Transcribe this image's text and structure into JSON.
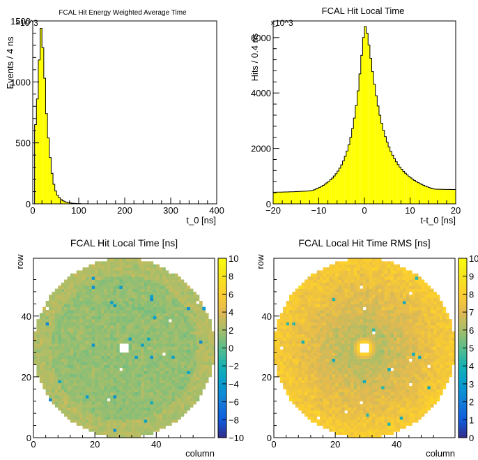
{
  "chart_data": [
    {
      "type": "histogram",
      "title": "FCAL Hit Energy Weighted Average Time",
      "xlabel": "t_0 [ns]",
      "ylabel": "Events / 4 ns",
      "y_multiplier": "×10^3",
      "xlim": [
        0,
        400
      ],
      "ylim": [
        0,
        1500
      ],
      "x_ticks": [
        0,
        100,
        200,
        300,
        400
      ],
      "y_ticks": [
        0,
        500,
        1000,
        1500
      ],
      "bin_width": 4,
      "fill_color": "#ffff00",
      "values": [
        0,
        650,
        860,
        1180,
        1440,
        1280,
        1030,
        740,
        540,
        380,
        250,
        160,
        105,
        70,
        50,
        35,
        25,
        18,
        13,
        9,
        7,
        5,
        4,
        3,
        2,
        2,
        1,
        1,
        1,
        1
      ]
    },
    {
      "type": "histogram",
      "title": "FCAL Hit Local Time",
      "xlabel": "t-t_0 [ns]",
      "ylabel": "Hits / 0.4 ns",
      "y_multiplier": "×10^3",
      "xlim": [
        -20,
        20
      ],
      "ylim": [
        0,
        6600
      ],
      "x_ticks": [
        -20,
        -10,
        0,
        10,
        20
      ],
      "y_ticks": [
        0,
        2000,
        4000,
        6000
      ],
      "bin_width": 0.4,
      "fill_color": "#ffff00",
      "peak": {
        "center": 0.2,
        "height": 6400,
        "width_left": 2.3,
        "width_right": 3.2,
        "tail_left": 0.22,
        "tail_right": 0.2,
        "baseline_left": 400,
        "baseline_right": 500
      }
    },
    {
      "type": "heatmap",
      "title": "FCAL Hit Local Time [ns]",
      "xlabel": "column",
      "ylabel": "row",
      "xlim": [
        0,
        59
      ],
      "ylim": [
        0,
        59
      ],
      "x_ticks": [
        0,
        20,
        40
      ],
      "y_ticks": [
        0,
        20,
        40
      ],
      "z_range": [
        -10,
        10
      ],
      "z_ticks": [
        -10,
        -8,
        -6,
        -4,
        -2,
        0,
        2,
        4,
        6,
        8,
        10
      ],
      "pattern": "flat",
      "center": [
        29,
        29
      ],
      "radius": 29.5,
      "beam_hole_half_width": 1
    },
    {
      "type": "heatmap",
      "title": "FCAL Local Hit Time RMS [ns]",
      "xlabel": "column",
      "ylabel": "row",
      "xlim": [
        0,
        59
      ],
      "ylim": [
        0,
        59
      ],
      "x_ticks": [
        0,
        20,
        40
      ],
      "y_ticks": [
        0,
        20,
        40
      ],
      "z_range": [
        0,
        10
      ],
      "z_ticks": [
        0,
        1,
        2,
        3,
        4,
        5,
        6,
        7,
        8,
        9,
        10
      ],
      "pattern": "radial",
      "center": [
        29,
        29
      ],
      "radius": 29.5,
      "beam_hole_half_width": 1
    }
  ]
}
